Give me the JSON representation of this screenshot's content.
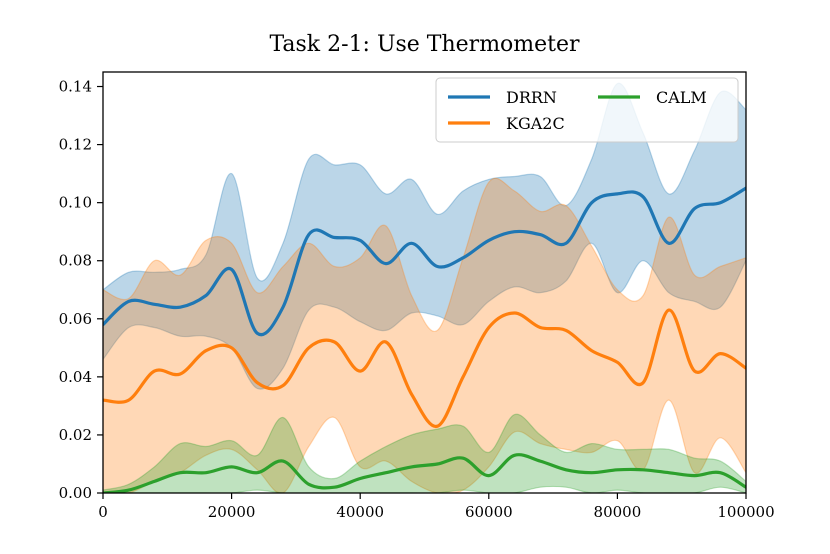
{
  "chart_data": {
    "type": "line",
    "title": "Task 2-1: Use Thermometer",
    "xlabel": "",
    "ylabel": "",
    "xlim": [
      0,
      100000
    ],
    "ylim": [
      0,
      0.145
    ],
    "xticks": [
      0,
      20000,
      40000,
      60000,
      80000,
      100000
    ],
    "xtick_labels": [
      "0",
      "20000",
      "40000",
      "60000",
      "80000",
      "100000"
    ],
    "yticks": [
      0.0,
      0.02,
      0.04,
      0.06,
      0.08,
      0.1,
      0.12,
      0.14
    ],
    "ytick_labels": [
      "0.00",
      "0.02",
      "0.04",
      "0.06",
      "0.08",
      "0.10",
      "0.12",
      "0.14"
    ],
    "legend_position": "top-right",
    "x": [
      0,
      4000,
      8000,
      12000,
      16000,
      20000,
      24000,
      28000,
      32000,
      36000,
      40000,
      44000,
      48000,
      52000,
      56000,
      60000,
      64000,
      68000,
      72000,
      76000,
      80000,
      84000,
      88000,
      92000,
      96000,
      100000
    ],
    "series": [
      {
        "name": "DRRN",
        "color": "#1f77b4",
        "fill_color": "#1f77b4",
        "mean": [
          0.058,
          0.066,
          0.065,
          0.064,
          0.068,
          0.077,
          0.055,
          0.064,
          0.089,
          0.088,
          0.087,
          0.079,
          0.086,
          0.078,
          0.081,
          0.087,
          0.09,
          0.089,
          0.086,
          0.1,
          0.103,
          0.102,
          0.086,
          0.098,
          0.1,
          0.105
        ],
        "upper": [
          0.07,
          0.076,
          0.076,
          0.077,
          0.082,
          0.11,
          0.074,
          0.086,
          0.115,
          0.113,
          0.113,
          0.103,
          0.108,
          0.096,
          0.104,
          0.108,
          0.109,
          0.109,
          0.099,
          0.115,
          0.141,
          0.124,
          0.103,
          0.118,
          0.138,
          0.132
        ],
        "lower": [
          0.046,
          0.057,
          0.057,
          0.054,
          0.054,
          0.05,
          0.036,
          0.043,
          0.063,
          0.064,
          0.059,
          0.056,
          0.062,
          0.061,
          0.058,
          0.066,
          0.071,
          0.069,
          0.073,
          0.086,
          0.069,
          0.08,
          0.069,
          0.066,
          0.064,
          0.08
        ]
      },
      {
        "name": "KGA2C",
        "color": "#ff7f0e",
        "fill_color": "#ff7f0e",
        "mean": [
          0.032,
          0.032,
          0.042,
          0.041,
          0.049,
          0.05,
          0.038,
          0.037,
          0.05,
          0.052,
          0.042,
          0.052,
          0.034,
          0.023,
          0.04,
          0.057,
          0.062,
          0.057,
          0.056,
          0.049,
          0.045,
          0.038,
          0.063,
          0.042,
          0.048,
          0.043
        ],
        "upper": [
          0.07,
          0.067,
          0.08,
          0.075,
          0.087,
          0.086,
          0.069,
          0.078,
          0.086,
          0.078,
          0.081,
          0.092,
          0.068,
          0.056,
          0.081,
          0.107,
          0.104,
          0.097,
          0.099,
          0.085,
          0.07,
          0.068,
          0.095,
          0.075,
          0.078,
          0.081
        ],
        "lower": [
          0.0,
          0.0,
          0.004,
          0.007,
          0.013,
          0.015,
          0.008,
          0.0,
          0.016,
          0.026,
          0.009,
          0.011,
          0.004,
          0.0,
          0.001,
          0.009,
          0.021,
          0.017,
          0.015,
          0.014,
          0.018,
          0.008,
          0.032,
          0.007,
          0.019,
          0.007
        ]
      },
      {
        "name": "CALM",
        "color": "#2ca02c",
        "fill_color": "#2ca02c",
        "mean": [
          0.0,
          0.001,
          0.004,
          0.007,
          0.007,
          0.009,
          0.007,
          0.011,
          0.003,
          0.002,
          0.005,
          0.007,
          0.009,
          0.01,
          0.012,
          0.006,
          0.013,
          0.011,
          0.008,
          0.007,
          0.008,
          0.008,
          0.007,
          0.006,
          0.007,
          0.002
        ],
        "upper": [
          0.001,
          0.003,
          0.009,
          0.017,
          0.016,
          0.018,
          0.013,
          0.026,
          0.009,
          0.005,
          0.011,
          0.016,
          0.02,
          0.022,
          0.023,
          0.014,
          0.027,
          0.02,
          0.014,
          0.017,
          0.015,
          0.015,
          0.015,
          0.012,
          0.011,
          0.004
        ],
        "lower": [
          0.0,
          0.0,
          0.0,
          0.0,
          0.0,
          0.0,
          0.001,
          0.0,
          0.0,
          0.0,
          0.0,
          0.0,
          0.0,
          0.0,
          0.001,
          0.0,
          0.0,
          0.002,
          0.002,
          0.0,
          0.001,
          0.0,
          0.0,
          0.0,
          0.002,
          0.0
        ]
      }
    ]
  }
}
